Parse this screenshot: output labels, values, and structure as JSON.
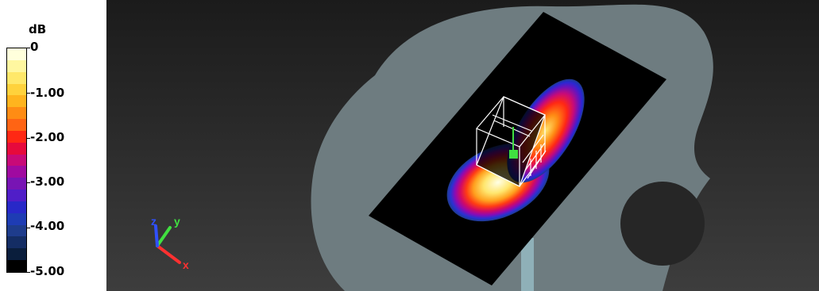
{
  "legend": {
    "unit": "dB",
    "labels": [
      "0",
      "-1.00",
      "-2.00",
      "-3.00",
      "-4.00",
      "-5.00"
    ],
    "colors": [
      "#ffffdc",
      "#fff7a0",
      "#ffe86a",
      "#ffd23c",
      "#ffb41e",
      "#ff8c14",
      "#ff6414",
      "#ff2814",
      "#e60a3c",
      "#c80a78",
      "#a00aa0",
      "#7814b4",
      "#501ec8",
      "#2828c8",
      "#1e3cb4",
      "#1e3c8c",
      "#142d64",
      "#0a1e3c",
      "#000000"
    ]
  },
  "viewport": {
    "background_top": "#1b1b1b",
    "background_bottom": "#3d3d3d",
    "head_color": "#6e7c80",
    "plane_color": "#000000",
    "mast_color": "#8fb0b8",
    "wireframe_color": "#ffffff",
    "feed_color": "#40e040"
  },
  "axes": {
    "x_label": "x",
    "y_label": "y",
    "z_label": "z",
    "x_color": "#ff3030",
    "y_color": "#40e040",
    "z_color": "#3050ff"
  }
}
